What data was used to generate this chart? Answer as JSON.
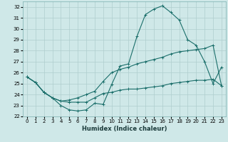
{
  "xlabel": "Humidex (Indice chaleur)",
  "background_color": "#cfe8e8",
  "grid_color": "#aecece",
  "line_color": "#1a6e6a",
  "xlim": [
    -0.5,
    23.5
  ],
  "ylim": [
    22,
    32.5
  ],
  "xticks": [
    0,
    1,
    2,
    3,
    4,
    5,
    6,
    7,
    8,
    9,
    10,
    11,
    12,
    13,
    14,
    15,
    16,
    17,
    18,
    19,
    20,
    21,
    22,
    23
  ],
  "yticks": [
    22,
    23,
    24,
    25,
    26,
    27,
    28,
    29,
    30,
    31,
    32
  ],
  "curve1_x": [
    0,
    1,
    2,
    3,
    4,
    5,
    6,
    7,
    8,
    9,
    10,
    11,
    12,
    13,
    14,
    15,
    16,
    17,
    18,
    19,
    20,
    21,
    22,
    23
  ],
  "curve1_y": [
    25.6,
    25.1,
    24.2,
    23.7,
    23.0,
    22.6,
    22.5,
    22.6,
    23.2,
    23.1,
    24.9,
    26.6,
    26.8,
    29.3,
    31.3,
    31.8,
    32.1,
    31.5,
    30.8,
    29.0,
    28.5,
    27.0,
    25.0,
    26.5
  ],
  "curve2_x": [
    0,
    1,
    2,
    3,
    4,
    5,
    6,
    7,
    8,
    9,
    10,
    11,
    12,
    13,
    14,
    15,
    16,
    17,
    18,
    19,
    20,
    21,
    22,
    23
  ],
  "curve2_y": [
    25.6,
    25.1,
    24.2,
    23.7,
    23.4,
    23.5,
    23.7,
    24.0,
    24.3,
    25.2,
    26.0,
    26.3,
    26.5,
    26.8,
    27.0,
    27.2,
    27.4,
    27.7,
    27.9,
    28.0,
    28.1,
    28.2,
    28.5,
    24.8
  ],
  "curve3_x": [
    0,
    1,
    2,
    3,
    4,
    5,
    6,
    7,
    8,
    9,
    10,
    11,
    12,
    13,
    14,
    15,
    16,
    17,
    18,
    19,
    20,
    21,
    22,
    23
  ],
  "curve3_y": [
    25.6,
    25.1,
    24.2,
    23.7,
    23.4,
    23.3,
    23.3,
    23.3,
    23.7,
    24.1,
    24.2,
    24.4,
    24.5,
    24.5,
    24.6,
    24.7,
    24.8,
    25.0,
    25.1,
    25.2,
    25.3,
    25.3,
    25.4,
    24.8
  ]
}
